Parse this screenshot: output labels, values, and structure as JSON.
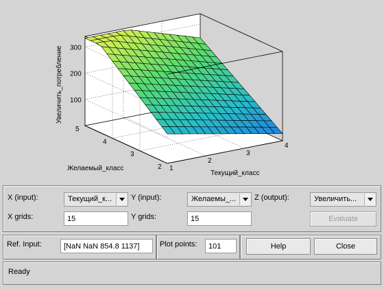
{
  "plot": {
    "xlabel": "Текущий_класс",
    "ylabel": "Желаемый_класс",
    "zlabel": "Увеличить_потребление",
    "x_ticks": [
      "1",
      "2",
      "3",
      "4"
    ],
    "y_ticks": [
      "2",
      "3",
      "4",
      "5"
    ],
    "z_ticks": [
      "100",
      "200",
      "300"
    ]
  },
  "controls": {
    "x_input_label": "X (input):",
    "x_input_value": "Текущий_к...",
    "y_input_label": "Y (input):",
    "y_input_value": "Желаемы_...",
    "z_output_label": "Z (output):",
    "z_output_value": "Увеличить...",
    "x_grids_label": "X grids:",
    "x_grids_value": "15",
    "y_grids_label": "Y grids:",
    "y_grids_value": "15",
    "evaluate_label": "Evaluate"
  },
  "bottom": {
    "ref_input_label": "Ref. Input:",
    "ref_input_value": "[NaN NaN 854.8 1137]",
    "plot_points_label": "Plot points:",
    "plot_points_value": "101",
    "help_label": "Help",
    "close_label": "Close"
  },
  "status": {
    "text": "Ready"
  },
  "colors": {
    "window_bg": "#d4d4d4",
    "surface_low": "#1e78e6",
    "surface_high": "#d8f050"
  }
}
